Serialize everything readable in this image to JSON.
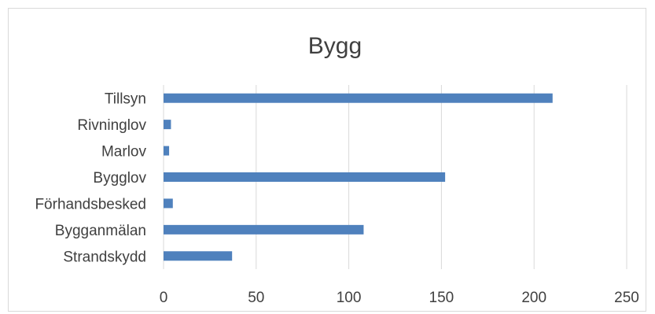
{
  "chart_data": {
    "type": "bar",
    "orientation": "horizontal",
    "title": "Bygg",
    "categories": [
      "Tillsyn",
      "Rivninglov",
      "Marlov",
      "Bygglov",
      "Förhandsbesked",
      "Bygganmälan",
      "Strandskydd"
    ],
    "values": [
      210,
      4,
      3,
      152,
      5,
      108,
      37
    ],
    "xlim": [
      0,
      250
    ],
    "x_ticks": [
      0,
      50,
      100,
      150,
      200,
      250
    ],
    "grid": true,
    "legend": "none",
    "bar_color": "#4f81bd",
    "grid_color": "#d9d9d9",
    "text_color": "#404040"
  }
}
